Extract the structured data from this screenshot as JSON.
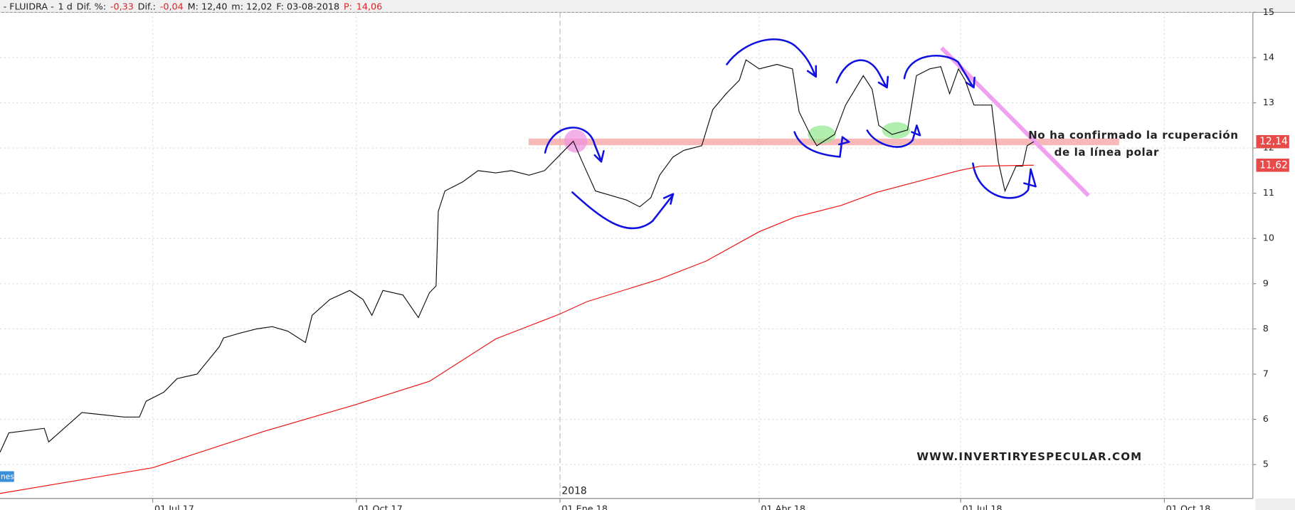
{
  "header": {
    "items": [
      {
        "text": "- FLUIDRA -",
        "color": "#222"
      },
      {
        "text": "1 d",
        "color": "#222"
      },
      {
        "text": "Dif. %:",
        "color": "#222"
      },
      {
        "text": "-0,33",
        "color": "#e02020"
      },
      {
        "text": "Dif.:",
        "color": "#222"
      },
      {
        "text": "-0,04",
        "color": "#e02020"
      },
      {
        "text": "M: 12,40",
        "color": "#222"
      },
      {
        "text": "m: 12,02",
        "color": "#222"
      },
      {
        "text": "F: 03-08-2018",
        "color": "#222"
      },
      {
        "text": "P:",
        "color": "#e02020"
      },
      {
        "text": "14,06",
        "color": "#e02020"
      }
    ]
  },
  "indicator_tag": "nes",
  "chart_data": {
    "type": "line",
    "annotations": [
      "No ha confirmado la rcuperación",
      "de la línea polar",
      "WWW.INVERTIRYESPECULAR.COM"
    ],
    "xlim": [
      "2017-04-23",
      "2018-11-10"
    ],
    "xticks": [
      {
        "value": "2017-07-01",
        "label": "01 Jul 17"
      },
      {
        "value": "2017-10-01",
        "label": "01 Oct 17"
      },
      {
        "value": "2018-01-01",
        "label": "01 Ene 18"
      },
      {
        "value": "2018-04-01",
        "label": "01 Abr 18"
      },
      {
        "value": "2018-07-01",
        "label": "01 Jul 18"
      },
      {
        "value": "2018-10-01",
        "label": "01 Oct 18"
      }
    ],
    "year_divider": {
      "value": "2018-01-01",
      "label": "2018"
    },
    "ylim": [
      4.25,
      15
    ],
    "yticks": [
      5,
      6,
      7,
      8,
      9,
      10,
      11,
      12,
      13,
      14,
      15
    ],
    "grid": true,
    "price_tags": [
      {
        "value": 12.14,
        "label": "12,14"
      },
      {
        "value": 11.62,
        "label": "11,62"
      }
    ],
    "series": [
      {
        "color": "#111111",
        "x": [
          "2017-04-23",
          "2017-04-27",
          "2017-05-13",
          "2017-05-15",
          "2017-05-30",
          "2017-06-18",
          "2017-06-25",
          "2017-06-28",
          "2017-07-06",
          "2017-07-12",
          "2017-07-21",
          "2017-07-31",
          "2017-08-02",
          "2017-08-09",
          "2017-08-17",
          "2017-08-24",
          "2017-08-31",
          "2017-09-08",
          "2017-09-11",
          "2017-09-19",
          "2017-09-28",
          "2017-10-04",
          "2017-10-08",
          "2017-10-13",
          "2017-10-22",
          "2017-10-29",
          "2017-11-03",
          "2017-11-06",
          "2017-11-07",
          "2017-11-10",
          "2017-11-18",
          "2017-11-25",
          "2017-12-03",
          "2017-12-10",
          "2017-12-18",
          "2017-12-25",
          "2018-01-02",
          "2018-01-07",
          "2018-01-11",
          "2018-01-17",
          "2018-01-24",
          "2018-01-31",
          "2018-02-06",
          "2018-02-11",
          "2018-02-15",
          "2018-02-21",
          "2018-02-26",
          "2018-03-06",
          "2018-03-11",
          "2018-03-17",
          "2018-03-23",
          "2018-03-26",
          "2018-04-01",
          "2018-04-09",
          "2018-04-16",
          "2018-04-19",
          "2018-04-24",
          "2018-04-27",
          "2018-05-05",
          "2018-05-10",
          "2018-05-18",
          "2018-05-22",
          "2018-05-25",
          "2018-05-31",
          "2018-06-07",
          "2018-06-11",
          "2018-06-17",
          "2018-06-22",
          "2018-06-26",
          "2018-06-30",
          "2018-07-03",
          "2018-07-07",
          "2018-07-15",
          "2018-07-18",
          "2018-07-21",
          "2018-07-26",
          "2018-07-29",
          "2018-07-31",
          "2018-08-03"
        ],
        "values": [
          5.27,
          5.7,
          5.8,
          5.5,
          6.15,
          6.05,
          6.05,
          6.4,
          6.6,
          6.9,
          7.0,
          7.6,
          7.8,
          7.9,
          8.0,
          8.05,
          7.95,
          7.7,
          8.3,
          8.65,
          8.85,
          8.65,
          8.3,
          8.85,
          8.75,
          8.25,
          8.8,
          8.95,
          10.6,
          11.05,
          11.25,
          11.5,
          11.45,
          11.5,
          11.4,
          11.5,
          11.9,
          12.15,
          11.7,
          11.05,
          10.95,
          10.85,
          10.7,
          10.9,
          11.4,
          11.8,
          11.95,
          12.05,
          12.85,
          13.2,
          13.5,
          13.95,
          13.75,
          13.85,
          13.75,
          12.8,
          12.3,
          12.05,
          12.3,
          12.95,
          13.6,
          13.3,
          12.5,
          12.3,
          12.4,
          13.6,
          13.75,
          13.8,
          13.2,
          13.75,
          13.5,
          12.95,
          12.95,
          11.7,
          11.05,
          11.6,
          11.6,
          12.05,
          12.14
        ]
      },
      {
        "color": "#ee1111",
        "x": [
          "2017-04-23",
          "2017-07-01",
          "2017-08-20",
          "2017-10-01",
          "2017-11-03",
          "2017-12-03",
          "2018-01-01",
          "2018-01-13",
          "2018-02-15",
          "2018-03-08",
          "2018-04-01",
          "2018-04-17",
          "2018-05-08",
          "2018-05-24",
          "2018-06-07",
          "2018-06-30",
          "2018-07-10",
          "2018-08-03"
        ],
        "values": [
          4.36,
          4.93,
          5.73,
          6.33,
          6.84,
          7.78,
          8.33,
          8.6,
          9.1,
          9.5,
          10.15,
          10.47,
          10.73,
          11.02,
          11.2,
          11.5,
          11.6,
          11.62
        ]
      }
    ]
  }
}
